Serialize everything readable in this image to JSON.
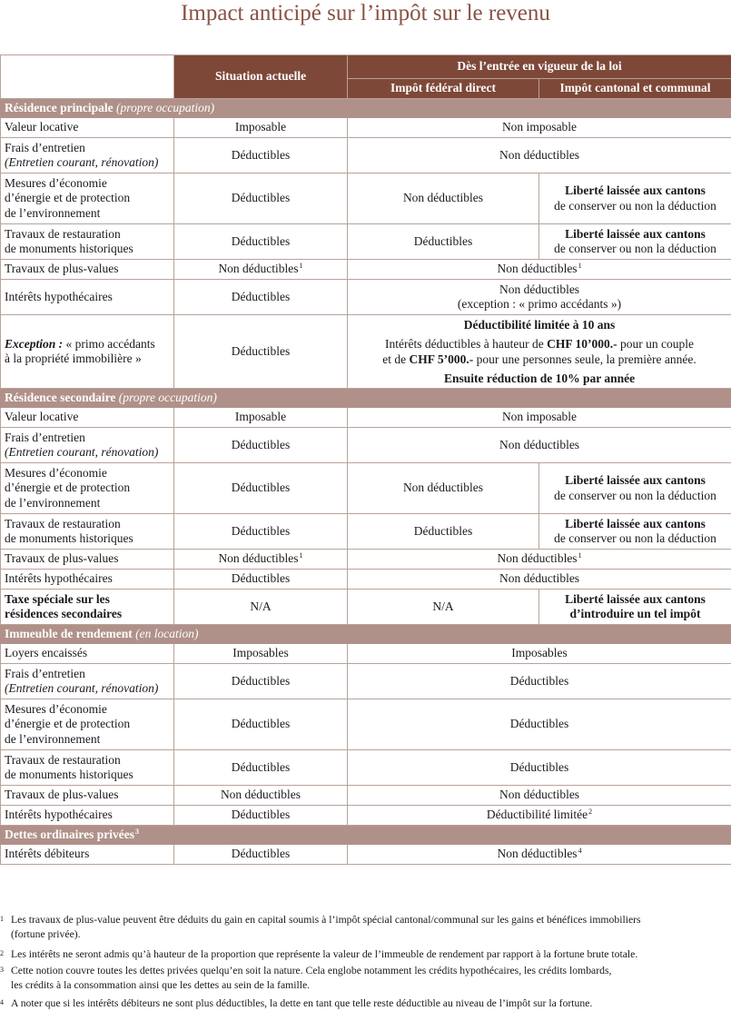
{
  "title": "Impact anticipé sur l’impôt sur le revenu",
  "header": {
    "current": "Situation actuelle",
    "future": "Dès l’entrée en vigueur de la loi",
    "federal": "Impôt fédéral direct",
    "cantonal": "Impôt cantonal et communal"
  },
  "sections": {
    "s1": {
      "name": "Résidence principale",
      "note": "(propre occupation)"
    },
    "s2": {
      "name": "Résidence secondaire",
      "note": "(propre occupation)"
    },
    "s3": {
      "name": "Immeuble de rendement",
      "note": "(en location)"
    },
    "s4": {
      "name": "Dettes ordinaires privées",
      "sup": "3"
    }
  },
  "labels": {
    "valeur_locative": "Valeur locative",
    "frais": "Frais d’entretien",
    "frais_note": "(Entretien courant, rénovation)",
    "mesures_1": "Mesures d’économie",
    "mesures_2": "d’énergie et de protection",
    "mesures_3": "de l’environnement",
    "travaux_1": "Travaux de restauration",
    "travaux_2": "de monuments historiques",
    "plus_values": "Travaux de plus-values",
    "interets_hyp": "Intérêts hypothécaires",
    "exception_label": "Exception :",
    "exception_1": " « primo accédants",
    "exception_2": "à la propriété immobilière »",
    "taxe_1": "Taxe spéciale sur les",
    "taxe_2": "résidences secondaires",
    "loyers": "Loyers encaissés",
    "interets_deb": "Intérêts débiteurs"
  },
  "values": {
    "imposable": "Imposable",
    "non_imposable": "Non imposable",
    "deductibles": "Déductibles",
    "non_deductibles": "Non déductibles",
    "exception_primo": "(exception : « primo accédants »)",
    "liberte": "Liberté laissée aux cantons",
    "liberte_conserver": "de conserver ou non la déduction",
    "liberte_introduire": "d’introduire un tel impôt",
    "na": "N/A",
    "imposables": "Imposables",
    "deductibilite_limitee": "Déductibilité limitée",
    "ded_10ans": "Déductibilité limitée à 10 ans",
    "ded_line1_a": "Intérêts déductibles à hauteur de ",
    "ded_line1_b": "CHF 10’000.-",
    "ded_line1_c": " pour un couple",
    "ded_line2_a": "et de ",
    "ded_line2_b": "CHF 5’000.-",
    "ded_line2_c": " pour une personnes seule, la première année.",
    "ensuite": "Ensuite réduction de 10% par année",
    "sup1": "1",
    "sup2": "2",
    "sup4": "4"
  },
  "footnotes": [
    {
      "n": "1",
      "l1": "Les travaux de plus-value peuvent être déduits du gain en capital soumis à l’impôt spécial cantonal/communal sur les gains et bénéfices immobiliers",
      "l2": "(fortune privée)."
    },
    {
      "n": "2",
      "l1": "Les intérêts ne seront admis qu’à hauteur de la proportion que représente la valeur de l’immeuble de rendement par rapport à la fortune brute totale."
    },
    {
      "n": "3",
      "l1": "Cette notion couvre toutes les dettes privées quelqu’en soit la nature. Cela englobe notamment les crédits hypothécaires, les crédits lombards,",
      "l2": "les crédits à la consommation ainsi que les dettes au sein de la famille."
    },
    {
      "n": "4",
      "l1": "A noter que si les intérêts débiteurs ne sont plus déductibles, la dette en tant que telle reste déductible au niveau de l’impôt sur la fortune."
    }
  ]
}
